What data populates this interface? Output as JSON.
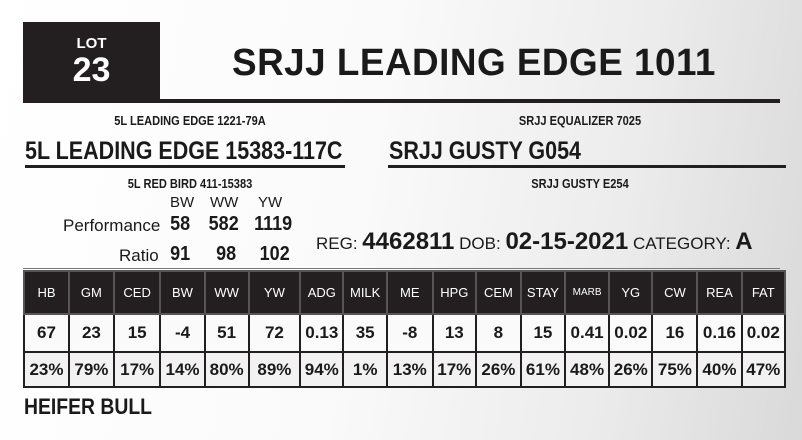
{
  "lot": {
    "label": "LOT",
    "number": "23"
  },
  "animal_name": "SRJJ LEADING EDGE 1011",
  "pedigree": {
    "sire_sire": "5L LEADING EDGE 1221-79A",
    "sire": "5L LEADING EDGE 15383-117C",
    "sire_dam": "5L RED BIRD 411-15383",
    "dam_sire": "SRJJ EQUALIZER 7025",
    "dam": "SRJJ GUSTY G054",
    "dam_dam": "SRJJ GUSTY E254"
  },
  "performance": {
    "headers": [
      "BW",
      "WW",
      "YW"
    ],
    "performance_label": "Performance",
    "performance": [
      "58",
      "582",
      "1119"
    ],
    "ratio_label": "Ratio",
    "ratio": [
      "91",
      "98",
      "102"
    ]
  },
  "info": {
    "reg_label": "REG:",
    "reg": "4462811",
    "dob_label": "DOB:",
    "dob": "02-15-2021",
    "category_label": "CATEGORY:",
    "category": "A"
  },
  "epd_table": {
    "headers": [
      "HB",
      "GM",
      "CED",
      "BW",
      "WW",
      "YW",
      "ADG",
      "MILK",
      "ME",
      "HPG",
      "CEM",
      "STAY",
      "MARB",
      "YG",
      "CW",
      "REA",
      "FAT"
    ],
    "values": [
      "67",
      "23",
      "15",
      "-4",
      "51",
      "72",
      "0.13",
      "35",
      "-8",
      "13",
      "8",
      "15",
      "0.41",
      "0.02",
      "16",
      "0.16",
      "0.02"
    ],
    "percentiles": [
      "23%",
      "79%",
      "17%",
      "14%",
      "80%",
      "89%",
      "94%",
      "1%",
      "13%",
      "17%",
      "26%",
      "61%",
      "48%",
      "26%",
      "75%",
      "40%",
      "47%"
    ]
  },
  "description": "HEIFER BULL"
}
